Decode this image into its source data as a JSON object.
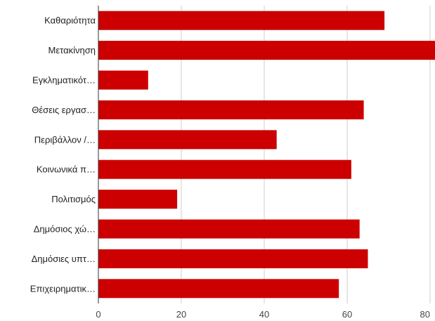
{
  "chart_data": {
    "type": "bar",
    "orientation": "horizontal",
    "categories": [
      "Καθαριότητα",
      "Μετακίνηση",
      "Εγκληματικότ…",
      "Θέσεις εργασ…",
      "Περιβάλλον /…",
      "Κοινωνικά π…",
      "Πολιτισμός",
      "Δημόσιος χώ…",
      "Δημόσιες υπτ…",
      "Επιχειρηματικ…"
    ],
    "values": [
      69,
      82,
      12,
      64,
      43,
      61,
      19,
      63,
      65,
      58
    ],
    "xlim": [
      0,
      80
    ],
    "xticks": [
      "0",
      "20",
      "40",
      "60",
      "80"
    ],
    "grid": true,
    "bar_color": "#cc0000",
    "legend": false
  }
}
